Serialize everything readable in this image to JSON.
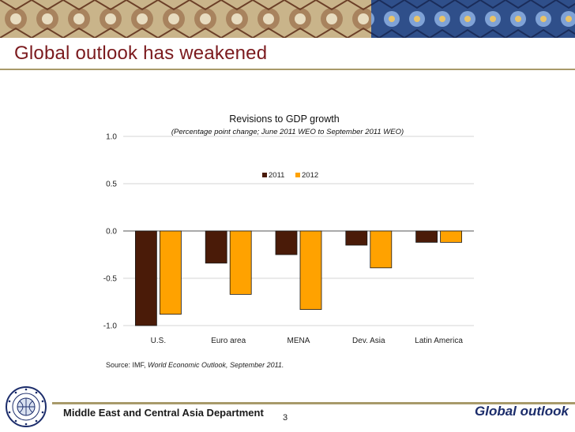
{
  "slide": {
    "title": "Global outlook has weakened",
    "page_number": "3",
    "department": "Middle East and Central Asia Department",
    "section": "Global outlook"
  },
  "source": {
    "prefix": "Source: IMF, ",
    "publication": "World Economic Outlook, September 2011."
  },
  "colors": {
    "series_2011": "#4a1b08",
    "series_2012": "#ffa200",
    "title_red": "#7b1a1e",
    "rule_gold": "#a89a6a",
    "section_blue": "#1c2d6b"
  },
  "chart_data": {
    "type": "bar",
    "title": "Revisions to GDP growth",
    "subtitle": "(Percentage point change; June 2011 WEO to September 2011 WEO)",
    "categories": [
      "U.S.",
      "Euro area",
      "MENA",
      "Dev. Asia",
      "Latin America"
    ],
    "series": [
      {
        "name": "2011",
        "values": [
          -1.0,
          -0.34,
          -0.25,
          -0.15,
          -0.12
        ]
      },
      {
        "name": "2012",
        "values": [
          -0.88,
          -0.67,
          -0.83,
          -0.39,
          -0.12
        ]
      }
    ],
    "ylim": [
      -1.0,
      1.0
    ],
    "yticks": [
      "1.0",
      "0.5",
      "0.0",
      "-0.5",
      "-1.0"
    ],
    "ytick_values": [
      1.0,
      0.5,
      0.0,
      -0.5,
      -1.0
    ],
    "xlabel": "",
    "ylabel": "",
    "grid": true,
    "legend": "top-center"
  }
}
